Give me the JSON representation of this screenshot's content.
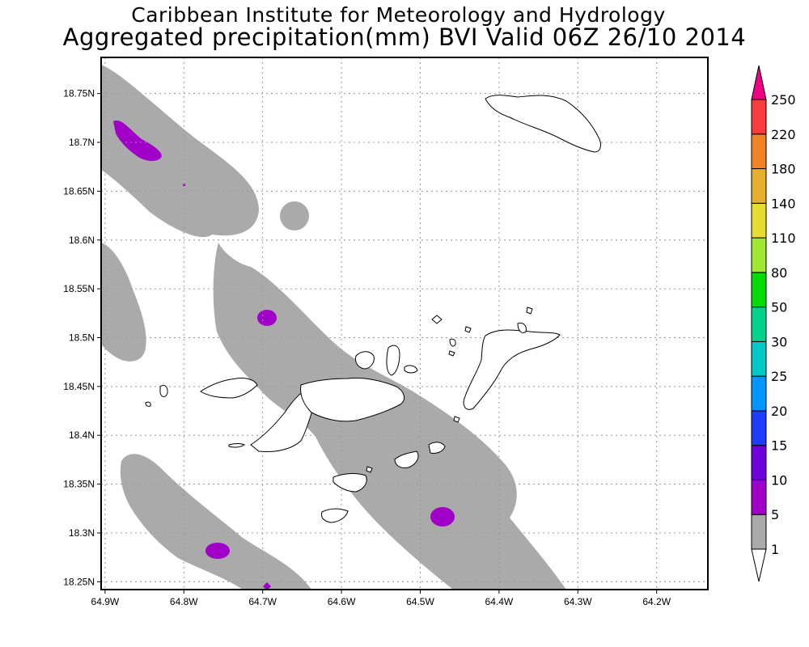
{
  "title": {
    "line1": "Caribbean Institute for Meteorology and Hydrology",
    "line2": "Aggregated precipitation(mm) BVI Valid 06Z 26/10 2014"
  },
  "map": {
    "lon_ticks": [
      {
        "value": -64.9,
        "label": "64.9W"
      },
      {
        "value": -64.8,
        "label": "64.8W"
      },
      {
        "value": -64.7,
        "label": "64.7W"
      },
      {
        "value": -64.6,
        "label": "64.6W"
      },
      {
        "value": -64.5,
        "label": "64.5W"
      },
      {
        "value": -64.4,
        "label": "64.4W"
      },
      {
        "value": -64.3,
        "label": "64.3W"
      },
      {
        "value": -64.2,
        "label": "64.2W"
      }
    ],
    "lat_ticks": [
      {
        "value": 18.75,
        "label": "18.75N"
      },
      {
        "value": 18.7,
        "label": "18.7N"
      },
      {
        "value": 18.65,
        "label": "18.65N"
      },
      {
        "value": 18.6,
        "label": "18.6N"
      },
      {
        "value": 18.55,
        "label": "18.55N"
      },
      {
        "value": 18.5,
        "label": "18.5N"
      },
      {
        "value": 18.45,
        "label": "18.45N"
      },
      {
        "value": 18.4,
        "label": "18.4N"
      },
      {
        "value": 18.35,
        "label": "18.35N"
      },
      {
        "value": 18.3,
        "label": "18.3N"
      },
      {
        "value": 18.25,
        "label": "18.25N"
      }
    ],
    "grid": true,
    "land_color": "#ffffff",
    "coast_color": "#000000"
  },
  "colorbar": {
    "levels": [
      "1",
      "5",
      "10",
      "15",
      "20",
      "25",
      "30",
      "50",
      "80",
      "110",
      "140",
      "180",
      "220",
      "250"
    ],
    "colors": [
      "#ffffff",
      "#aaaaaa",
      "#a000c8",
      "#6e00dc",
      "#1e3cff",
      "#0096ff",
      "#00c8c8",
      "#00d28c",
      "#00dc00",
      "#a0e632",
      "#e6dc32",
      "#e6af2d",
      "#f08228",
      "#fa3c3c",
      "#f00082"
    ]
  },
  "precipitation": {
    "categories": [
      {
        "range": "1-5",
        "color": "#aaaaaa"
      },
      {
        "range": "5-10",
        "color": "#a000c8"
      }
    ]
  }
}
